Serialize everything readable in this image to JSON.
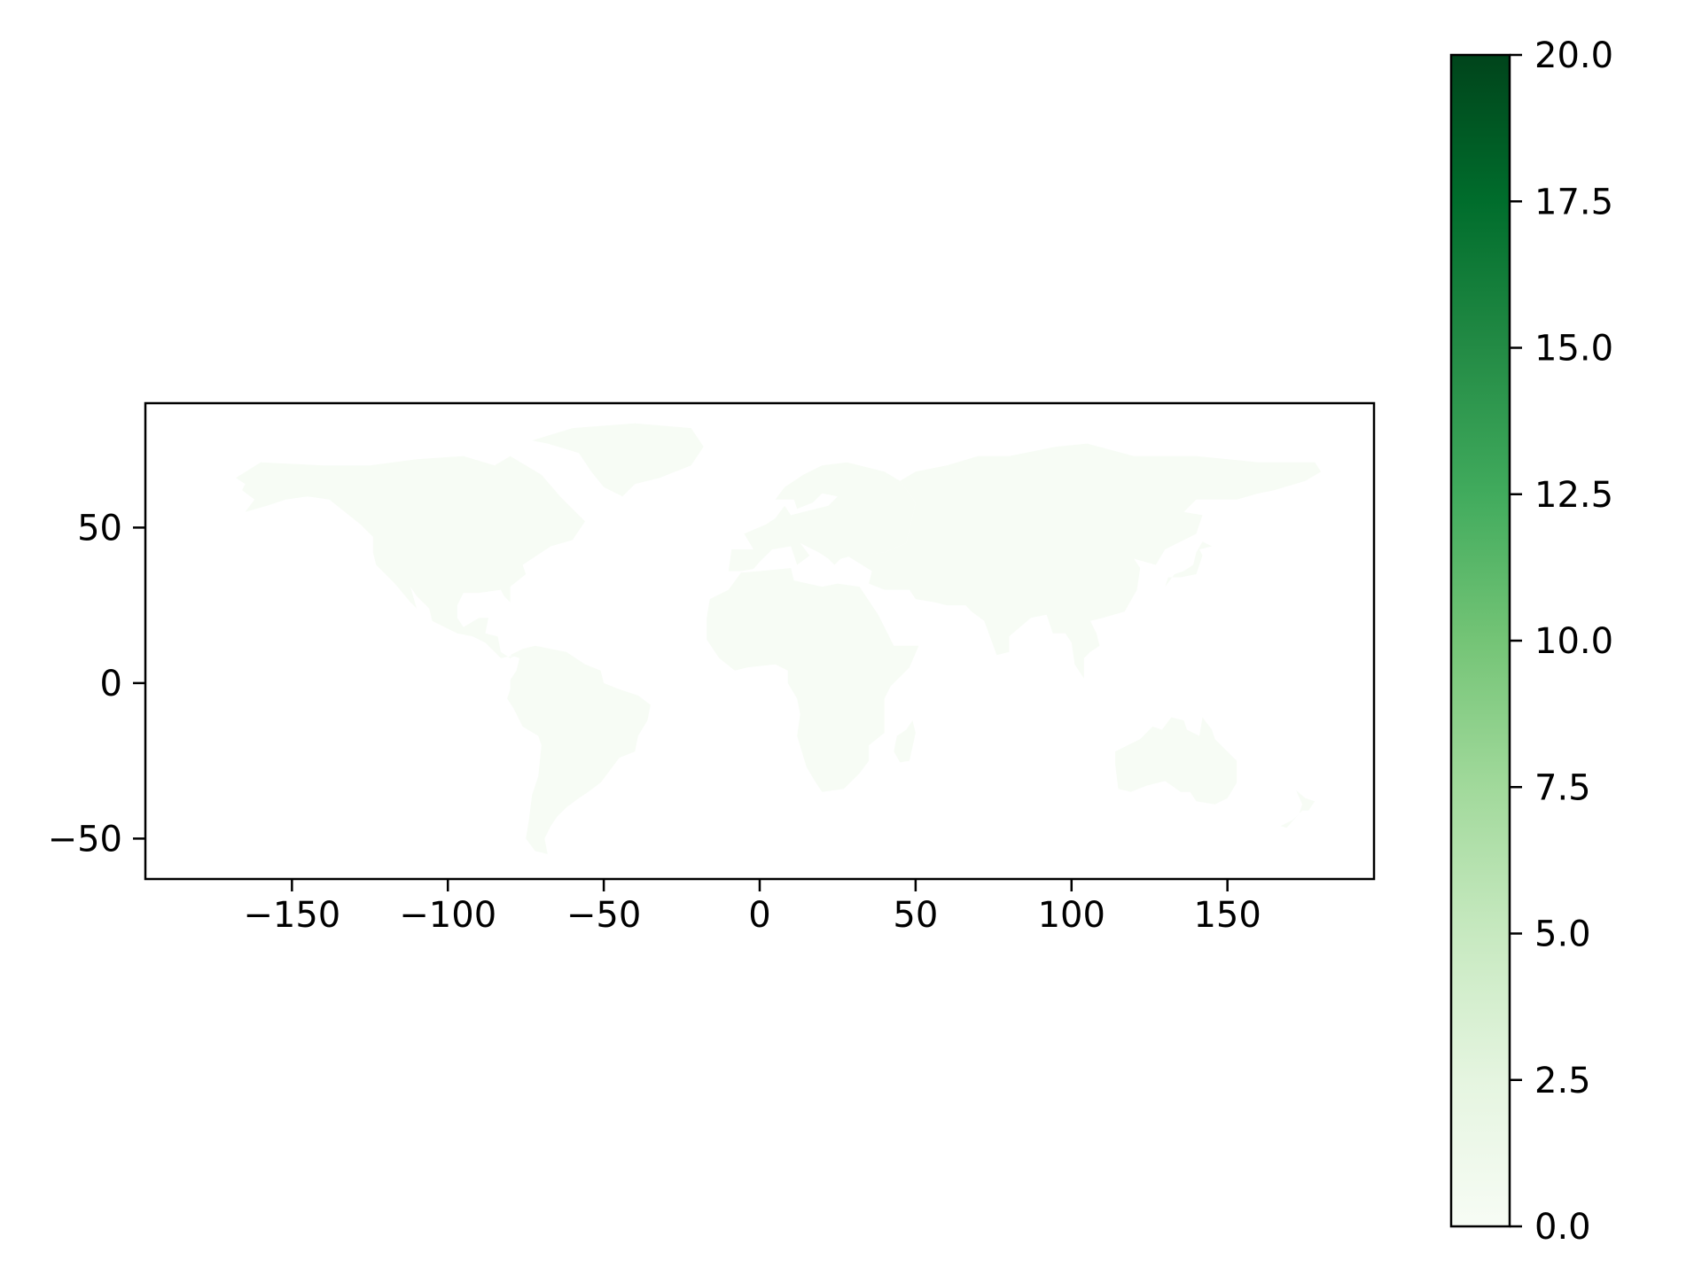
{
  "chart_data": {
    "type": "heatmap",
    "subtype": "choropleth-world-map",
    "title": "",
    "xlabel": "",
    "ylabel": "",
    "xlim": [
      -197,
      197
    ],
    "ylim": [
      -63,
      90
    ],
    "x_ticks": [
      -150,
      -100,
      -50,
      0,
      50,
      100,
      150
    ],
    "x_tick_labels": [
      "−150",
      "−100",
      "−50",
      "0",
      "50",
      "100",
      "150"
    ],
    "y_ticks": [
      50,
      0,
      -50
    ],
    "y_tick_labels": [
      "50",
      "0",
      "−50"
    ],
    "grid": false,
    "colormap": "Greens",
    "land_value": 0.0,
    "land_color": "#f7fcf5",
    "colorbar": {
      "position": "right",
      "range": [
        0,
        20
      ],
      "ticks": [
        0,
        2.5,
        5,
        7.5,
        10,
        12.5,
        15,
        17.5,
        20
      ],
      "tick_labels": [
        "0.0",
        "2.5",
        "5.0",
        "7.5",
        "10.0",
        "12.5",
        "15.0",
        "17.5",
        "20.0"
      ],
      "colors": [
        "#f7fcf5",
        "#e5f5e0",
        "#c7e9c0",
        "#a1d99b",
        "#74c476",
        "#41ab5d",
        "#238b45",
        "#006d2c",
        "#00441b"
      ]
    },
    "regions": [
      {
        "name": "North America",
        "value": 0.0
      },
      {
        "name": "Greenland",
        "value": 0.0
      },
      {
        "name": "South America",
        "value": 0.0
      },
      {
        "name": "Africa",
        "value": 0.0
      },
      {
        "name": "Europe",
        "value": 0.0
      },
      {
        "name": "Asia",
        "value": 0.0
      },
      {
        "name": "Australia",
        "value": 0.0
      },
      {
        "name": "Madagascar",
        "value": 0.0
      },
      {
        "name": "Japan",
        "value": 0.0
      },
      {
        "name": "New Zealand",
        "value": 0.0
      }
    ]
  }
}
